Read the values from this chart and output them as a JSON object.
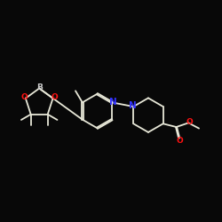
{
  "background_color": "#080808",
  "bond_color": "#e8e8d8",
  "atom_colors": {
    "N": "#3333ff",
    "O": "#ff1111",
    "B": "#cccccc"
  },
  "figsize": [
    2.5,
    2.5
  ],
  "dpi": 100,
  "lw": 1.3,
  "fs": 6.5
}
